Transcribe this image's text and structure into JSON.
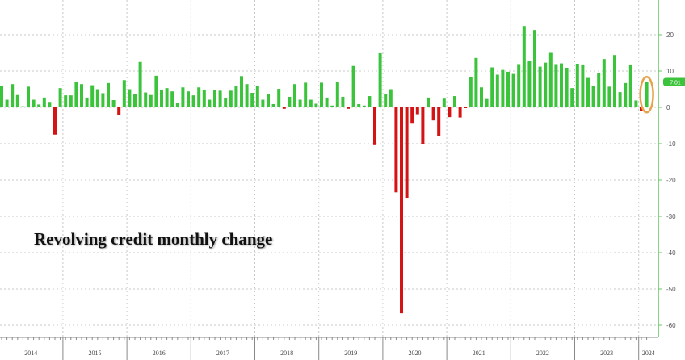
{
  "chart_data": {
    "type": "bar",
    "title": "Revolving credit monthly change",
    "xlabel": "",
    "ylabel": "",
    "ylim": [
      -62,
      29
    ],
    "yticks": [
      20,
      10,
      0,
      -10,
      -20,
      -30,
      -40,
      -50,
      -60
    ],
    "axis_side": "right",
    "grid": true,
    "years": [
      "2014",
      "2015",
      "2016",
      "2017",
      "2018",
      "2019",
      "2020",
      "2021",
      "2022",
      "2023",
      "2024"
    ],
    "start_month": "2014-01",
    "values": [
      5.9,
      2.1,
      6.4,
      3.4,
      0.3,
      5.7,
      2.1,
      0.8,
      2.7,
      1.5,
      -7.5,
      5.3,
      3.3,
      3.3,
      7,
      6.4,
      2.7,
      6.1,
      5,
      3.9,
      6.7,
      2,
      -2,
      7.5,
      5,
      3.6,
      12.5,
      4.1,
      3.4,
      8.7,
      4.9,
      5.3,
      4.4,
      1.3,
      5.5,
      4.4,
      3.3,
      5.5,
      4.9,
      2.1,
      4.7,
      4.6,
      2.5,
      4.6,
      5.9,
      8.6,
      6.4,
      4,
      5.9,
      2.1,
      3.6,
      0.9,
      5.1,
      -0.4,
      2.9,
      6.4,
      2.1,
      6.8,
      2.1,
      1,
      6.8,
      2.7,
      0.5,
      7.1,
      2.9,
      -0.4,
      11.4,
      0.9,
      0.5,
      3.1,
      -10.4,
      14.9,
      3.6,
      5,
      -23.4,
      -56.7,
      -24.9,
      -4.5,
      -1.9,
      -10.1,
      2.7,
      -3.6,
      -7.9,
      2.4,
      -2.7,
      3.1,
      -2.8,
      -0.2,
      8.4,
      13.6,
      5.5,
      2.3,
      11,
      9,
      10.3,
      9.8,
      9.2,
      11.9,
      22.4,
      12.7,
      21.3,
      11.2,
      12.3,
      15,
      11.9,
      12.1,
      10.9,
      5.3,
      12,
      11.8,
      8.1,
      6,
      9.4,
      13.3,
      5.7,
      14.4,
      4.2,
      6.7,
      11.8,
      1.9,
      -1,
      7.01
    ],
    "last_value_label": "7.01",
    "colors": {
      "positive": "#3cc33c",
      "negative": "#d41414",
      "highlight": "#e8a24a",
      "axis": "#5ec85e",
      "grid": "#c8c8c8"
    }
  }
}
